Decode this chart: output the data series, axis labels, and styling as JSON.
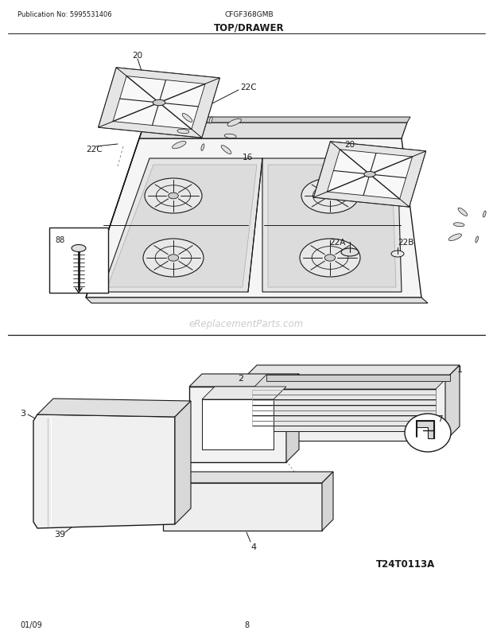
{
  "title": "TOP/DRAWER",
  "pub_no": "Publication No: 5995531406",
  "model": "CFGF368GMB",
  "diagram_id": "T24T0113A",
  "date": "01/09",
  "page": "8",
  "watermark": "eReplacementParts.com",
  "bg_color": "#ffffff"
}
